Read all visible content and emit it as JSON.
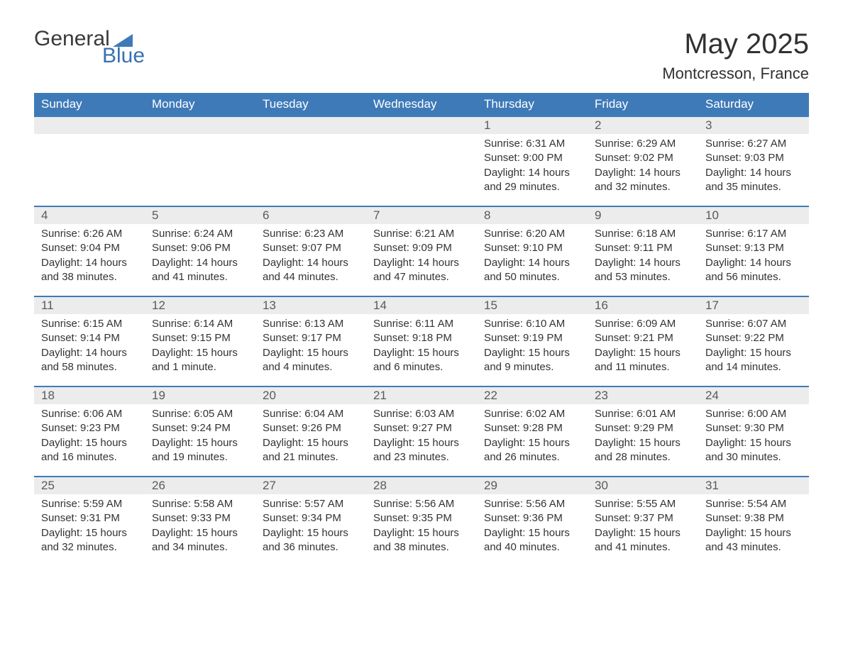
{
  "logo": {
    "text1": "General",
    "text2": "Blue",
    "accent_color": "#3f7ab8"
  },
  "title": "May 2025",
  "location": "Montcresson, France",
  "day_headers": [
    "Sunday",
    "Monday",
    "Tuesday",
    "Wednesday",
    "Thursday",
    "Friday",
    "Saturday"
  ],
  "header_bg": "#3f7ab8",
  "header_fg": "#ffffff",
  "daynum_bg": "#ececec",
  "border_color": "#3f7ab8",
  "weeks": [
    [
      null,
      null,
      null,
      null,
      {
        "n": "1",
        "sunrise": "6:31 AM",
        "sunset": "9:00 PM",
        "daylight": "14 hours and 29 minutes."
      },
      {
        "n": "2",
        "sunrise": "6:29 AM",
        "sunset": "9:02 PM",
        "daylight": "14 hours and 32 minutes."
      },
      {
        "n": "3",
        "sunrise": "6:27 AM",
        "sunset": "9:03 PM",
        "daylight": "14 hours and 35 minutes."
      }
    ],
    [
      {
        "n": "4",
        "sunrise": "6:26 AM",
        "sunset": "9:04 PM",
        "daylight": "14 hours and 38 minutes."
      },
      {
        "n": "5",
        "sunrise": "6:24 AM",
        "sunset": "9:06 PM",
        "daylight": "14 hours and 41 minutes."
      },
      {
        "n": "6",
        "sunrise": "6:23 AM",
        "sunset": "9:07 PM",
        "daylight": "14 hours and 44 minutes."
      },
      {
        "n": "7",
        "sunrise": "6:21 AM",
        "sunset": "9:09 PM",
        "daylight": "14 hours and 47 minutes."
      },
      {
        "n": "8",
        "sunrise": "6:20 AM",
        "sunset": "9:10 PM",
        "daylight": "14 hours and 50 minutes."
      },
      {
        "n": "9",
        "sunrise": "6:18 AM",
        "sunset": "9:11 PM",
        "daylight": "14 hours and 53 minutes."
      },
      {
        "n": "10",
        "sunrise": "6:17 AM",
        "sunset": "9:13 PM",
        "daylight": "14 hours and 56 minutes."
      }
    ],
    [
      {
        "n": "11",
        "sunrise": "6:15 AM",
        "sunset": "9:14 PM",
        "daylight": "14 hours and 58 minutes."
      },
      {
        "n": "12",
        "sunrise": "6:14 AM",
        "sunset": "9:15 PM",
        "daylight": "15 hours and 1 minute."
      },
      {
        "n": "13",
        "sunrise": "6:13 AM",
        "sunset": "9:17 PM",
        "daylight": "15 hours and 4 minutes."
      },
      {
        "n": "14",
        "sunrise": "6:11 AM",
        "sunset": "9:18 PM",
        "daylight": "15 hours and 6 minutes."
      },
      {
        "n": "15",
        "sunrise": "6:10 AM",
        "sunset": "9:19 PM",
        "daylight": "15 hours and 9 minutes."
      },
      {
        "n": "16",
        "sunrise": "6:09 AM",
        "sunset": "9:21 PM",
        "daylight": "15 hours and 11 minutes."
      },
      {
        "n": "17",
        "sunrise": "6:07 AM",
        "sunset": "9:22 PM",
        "daylight": "15 hours and 14 minutes."
      }
    ],
    [
      {
        "n": "18",
        "sunrise": "6:06 AM",
        "sunset": "9:23 PM",
        "daylight": "15 hours and 16 minutes."
      },
      {
        "n": "19",
        "sunrise": "6:05 AM",
        "sunset": "9:24 PM",
        "daylight": "15 hours and 19 minutes."
      },
      {
        "n": "20",
        "sunrise": "6:04 AM",
        "sunset": "9:26 PM",
        "daylight": "15 hours and 21 minutes."
      },
      {
        "n": "21",
        "sunrise": "6:03 AM",
        "sunset": "9:27 PM",
        "daylight": "15 hours and 23 minutes."
      },
      {
        "n": "22",
        "sunrise": "6:02 AM",
        "sunset": "9:28 PM",
        "daylight": "15 hours and 26 minutes."
      },
      {
        "n": "23",
        "sunrise": "6:01 AM",
        "sunset": "9:29 PM",
        "daylight": "15 hours and 28 minutes."
      },
      {
        "n": "24",
        "sunrise": "6:00 AM",
        "sunset": "9:30 PM",
        "daylight": "15 hours and 30 minutes."
      }
    ],
    [
      {
        "n": "25",
        "sunrise": "5:59 AM",
        "sunset": "9:31 PM",
        "daylight": "15 hours and 32 minutes."
      },
      {
        "n": "26",
        "sunrise": "5:58 AM",
        "sunset": "9:33 PM",
        "daylight": "15 hours and 34 minutes."
      },
      {
        "n": "27",
        "sunrise": "5:57 AM",
        "sunset": "9:34 PM",
        "daylight": "15 hours and 36 minutes."
      },
      {
        "n": "28",
        "sunrise": "5:56 AM",
        "sunset": "9:35 PM",
        "daylight": "15 hours and 38 minutes."
      },
      {
        "n": "29",
        "sunrise": "5:56 AM",
        "sunset": "9:36 PM",
        "daylight": "15 hours and 40 minutes."
      },
      {
        "n": "30",
        "sunrise": "5:55 AM",
        "sunset": "9:37 PM",
        "daylight": "15 hours and 41 minutes."
      },
      {
        "n": "31",
        "sunrise": "5:54 AM",
        "sunset": "9:38 PM",
        "daylight": "15 hours and 43 minutes."
      }
    ]
  ],
  "labels": {
    "sunrise": "Sunrise:",
    "sunset": "Sunset:",
    "daylight": "Daylight:"
  }
}
